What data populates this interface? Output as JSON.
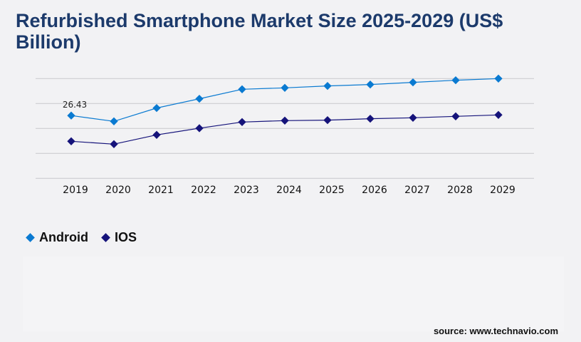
{
  "chart_data": {
    "type": "line",
    "title": "Refurbished Smartphone Market Size 2025-2029 (US$ Billion)",
    "categories": [
      "2019",
      "2020",
      "2021",
      "2022",
      "2023",
      "2024",
      "2025",
      "2026",
      "2027",
      "2028",
      "2029"
    ],
    "series": [
      {
        "name": "Android",
        "color": "#0a7ad1",
        "values": [
          26.43,
          24.0,
          29.6,
          33.5,
          37.5,
          38.1,
          38.9,
          39.5,
          40.4,
          41.3,
          42.0
        ]
      },
      {
        "name": "IOS",
        "color": "#15137a",
        "values": [
          15.6,
          14.4,
          18.3,
          21.1,
          23.7,
          24.3,
          24.5,
          25.1,
          25.5,
          26.1,
          26.7
        ]
      }
    ],
    "data_labels": [
      {
        "series": "Android",
        "category": "2019",
        "text": "26.43"
      }
    ],
    "ylim": [
      0,
      42
    ],
    "gridlines": 5,
    "grid": true,
    "legend": "bottom-left"
  },
  "source": "source: www.technavio.com"
}
